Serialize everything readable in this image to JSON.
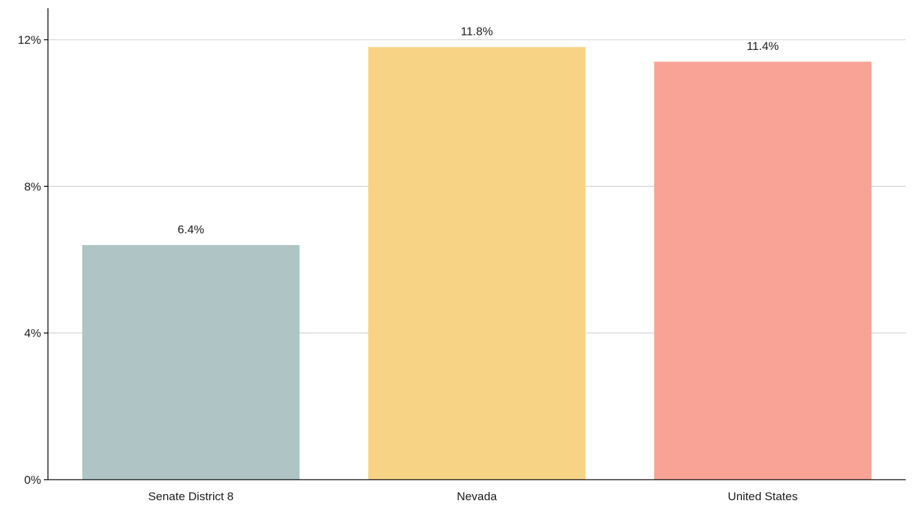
{
  "chart_data": {
    "type": "bar",
    "categories": [
      "Senate District 8",
      "Nevada",
      "United States"
    ],
    "values": [
      6.4,
      11.8,
      11.4
    ],
    "value_labels": [
      "6.4%",
      "11.8%",
      "11.4%"
    ],
    "colors": [
      "#aec4c5",
      "#f7d386",
      "#f8a396"
    ],
    "ylim": [
      0,
      12
    ],
    "yticks": [
      0,
      4,
      8,
      12
    ],
    "ytick_labels": [
      "0%",
      "4%",
      "8%",
      "12%"
    ],
    "grid": true,
    "gridline_color": "#c8c8c8",
    "axis_color": "#000000"
  }
}
